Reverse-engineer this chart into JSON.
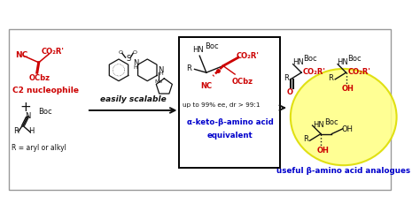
{
  "background_color": "#ffffff",
  "border_color": "#999999",
  "colors": {
    "red": "#cc0000",
    "blue": "#0000cc",
    "black": "#111111",
    "yellow_fill": "#ffff88",
    "yellow_edge": "#dddd00"
  },
  "figsize": [
    4.74,
    2.48
  ],
  "dpi": 100,
  "texts": {
    "c2_nuc": "C2 nucleophile",
    "r_label": "R = aryl or alkyl",
    "easily_scalable": "easily scalable",
    "box_line1": "up to 99% ee, dr > 99:1",
    "box_line2": "α-keto-β-amino acid",
    "box_line3": "equivalent",
    "bottom_label": "useful β-amino acid analogues"
  }
}
